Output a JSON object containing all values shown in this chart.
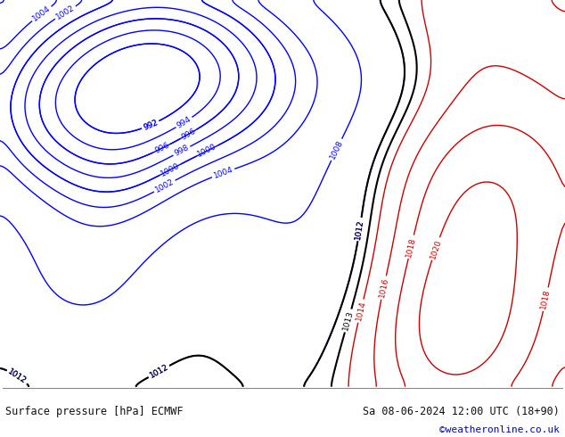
{
  "title_left": "Surface pressure [hPa] ECMWF",
  "title_right": "Sa 08-06-2024 12:00 UTC (18+90)",
  "credit": "©weatheronline.co.uk",
  "credit_color": "#0000cc",
  "land_color": "#c8f0a0",
  "sea_color": "#dcdcdc",
  "mountain_color": "#b0b0b0",
  "blue_color": "#0000ff",
  "black_color": "#000000",
  "red_color": "#cc0000",
  "footer_bg": "#ffffff",
  "border_color": "#888888",
  "figsize": [
    6.34,
    4.9
  ],
  "dpi": 100,
  "lon_min": -25,
  "lon_max": 45,
  "lat_min": 35,
  "lat_max": 72
}
